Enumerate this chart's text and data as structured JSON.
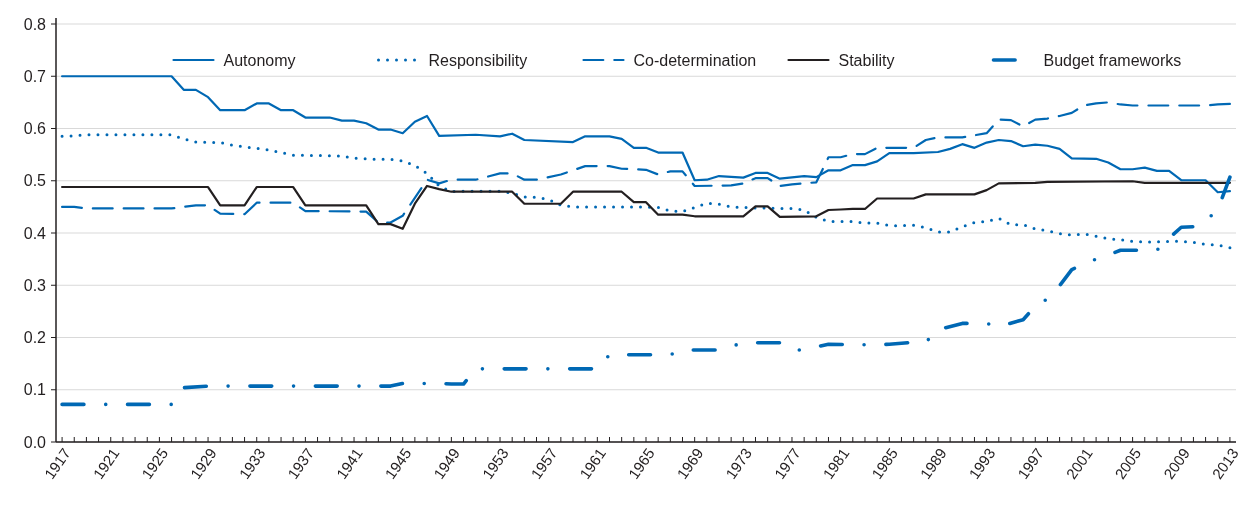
{
  "chart_data": {
    "type": "line",
    "xlim": [
      1916.5,
      2013.5
    ],
    "xticks": [
      1917,
      {
        "value": 1918,
        "label": null
      },
      {
        "value": 1919,
        "label": null
      },
      {
        "value": 1920,
        "label": null
      },
      1921,
      {
        "value": 1922,
        "label": null
      },
      {
        "value": 1923,
        "label": null
      },
      {
        "value": 1924,
        "label": null
      },
      1925,
      {
        "value": 1926,
        "label": null
      },
      {
        "value": 1927,
        "label": null
      },
      {
        "value": 1928,
        "label": null
      },
      1929,
      {
        "value": 1930,
        "label": null
      },
      {
        "value": 1931,
        "label": null
      },
      {
        "value": 1932,
        "label": null
      },
      1933,
      {
        "value": 1934,
        "label": null
      },
      {
        "value": 1935,
        "label": null
      },
      {
        "value": 1936,
        "label": null
      },
      1937,
      {
        "value": 1938,
        "label": null
      },
      {
        "value": 1939,
        "label": null
      },
      {
        "value": 1940,
        "label": null
      },
      1941,
      {
        "value": 1942,
        "label": null
      },
      {
        "value": 1943,
        "label": null
      },
      {
        "value": 1944,
        "label": null
      },
      1945,
      {
        "value": 1946,
        "label": null
      },
      {
        "value": 1947,
        "label": null
      },
      {
        "value": 1948,
        "label": null
      },
      1949,
      {
        "value": 1950,
        "label": null
      },
      {
        "value": 1951,
        "label": null
      },
      {
        "value": 1952,
        "label": null
      },
      1953,
      {
        "value": 1954,
        "label": null
      },
      {
        "value": 1955,
        "label": null
      },
      {
        "value": 1956,
        "label": null
      },
      1957,
      {
        "value": 1958,
        "label": null
      },
      {
        "value": 1959,
        "label": null
      },
      {
        "value": 1960,
        "label": null
      },
      1961,
      {
        "value": 1962,
        "label": null
      },
      {
        "value": 1963,
        "label": null
      },
      {
        "value": 1964,
        "label": null
      },
      1965,
      {
        "value": 1966,
        "label": null
      },
      {
        "value": 1967,
        "label": null
      },
      {
        "value": 1968,
        "label": null
      },
      1969,
      {
        "value": 1970,
        "label": null
      },
      {
        "value": 1971,
        "label": null
      },
      {
        "value": 1972,
        "label": null
      },
      1973,
      {
        "value": 1974,
        "label": null
      },
      {
        "value": 1975,
        "label": null
      },
      {
        "value": 1976,
        "label": null
      },
      1977,
      {
        "value": 1978,
        "label": null
      },
      {
        "value": 1979,
        "label": null
      },
      {
        "value": 1980,
        "label": null
      },
      1981,
      {
        "value": 1982,
        "label": null
      },
      {
        "value": 1983,
        "label": null
      },
      {
        "value": 1984,
        "label": null
      },
      1985,
      {
        "value": 1986,
        "label": null
      },
      {
        "value": 1987,
        "label": null
      },
      {
        "value": 1988,
        "label": null
      },
      1989,
      {
        "value": 1990,
        "label": null
      },
      {
        "value": 1991,
        "label": null
      },
      {
        "value": 1992,
        "label": null
      },
      1993,
      {
        "value": 1994,
        "label": null
      },
      {
        "value": 1995,
        "label": null
      },
      {
        "value": 1996,
        "label": null
      },
      1997,
      {
        "value": 1998,
        "label": null
      },
      {
        "value": 1999,
        "label": null
      },
      {
        "value": 2000,
        "label": null
      },
      2001,
      {
        "value": 2002,
        "label": null
      },
      {
        "value": 2003,
        "label": null
      },
      {
        "value": 2004,
        "label": null
      },
      2005,
      {
        "value": 2006,
        "label": null
      },
      {
        "value": 2007,
        "label": null
      },
      {
        "value": 2008,
        "label": null
      },
      2009,
      {
        "value": 2010,
        "label": null
      },
      {
        "value": 2011,
        "label": null
      },
      {
        "value": 2012,
        "label": null
      },
      2013
    ],
    "ylim": [
      0,
      0.8
    ],
    "yticks": [
      {
        "value": 0,
        "label": "0.0"
      },
      0.1,
      0.2,
      0.3,
      0.4,
      0.5,
      0.6,
      0.7,
      0.8
    ],
    "grid": "y",
    "legend": "top",
    "marker": "none",
    "series": [
      {
        "name": "Autonomy",
        "color": "#0068b4",
        "line_style": "solid",
        "x": [
          1917,
          1926,
          1927,
          1928,
          1929,
          1930,
          1932,
          1933,
          1934,
          1935,
          1936,
          1937,
          1939,
          1940,
          1941,
          1942,
          1943,
          1944,
          1945,
          1946,
          1947,
          1948,
          1951,
          1953,
          1954,
          1955,
          1959,
          1960,
          1962,
          1963,
          1964,
          1965,
          1966,
          1968,
          1969,
          1970,
          1971,
          1973,
          1974,
          1975,
          1976,
          1978,
          1979,
          1980,
          1981,
          1982,
          1983,
          1984,
          1985,
          1987,
          1989,
          1990,
          1991,
          1992,
          1993,
          1994,
          1995,
          1996,
          1997,
          1998,
          1999,
          2000,
          2002,
          2003,
          2004,
          2005,
          2006,
          2007,
          2008,
          2009,
          2011,
          2012,
          2013
        ],
        "values": [
          0.7,
          0.7,
          0.674,
          0.674,
          0.66,
          0.635,
          0.635,
          0.648,
          0.648,
          0.635,
          0.635,
          0.621,
          0.621,
          0.615,
          0.615,
          0.61,
          0.598,
          0.598,
          0.591,
          0.613,
          0.624,
          0.586,
          0.588,
          0.585,
          0.59,
          0.578,
          0.574,
          0.585,
          0.585,
          0.58,
          0.563,
          0.563,
          0.554,
          0.554,
          0.501,
          0.502,
          0.509,
          0.506,
          0.515,
          0.515,
          0.504,
          0.509,
          0.507,
          0.52,
          0.52,
          0.53,
          0.53,
          0.537,
          0.553,
          0.553,
          0.555,
          0.561,
          0.57,
          0.563,
          0.573,
          0.578,
          0.576,
          0.566,
          0.569,
          0.567,
          0.561,
          0.543,
          0.542,
          0.535,
          0.522,
          0.522,
          0.525,
          0.519,
          0.519,
          0.501,
          0.501,
          0.478,
          0.48
        ]
      },
      {
        "name": "Responsibility",
        "color": "#0068b4",
        "line_style": "dotted",
        "x": [
          1917,
          1918,
          1919,
          1926,
          1927,
          1928,
          1930,
          1931,
          1932,
          1933,
          1934,
          1935,
          1936,
          1939,
          1940,
          1941,
          1943,
          1944,
          1945,
          1946,
          1947,
          1948,
          1949,
          1950,
          1953,
          1954,
          1955,
          1956,
          1957,
          1958,
          1959,
          1964,
          1966,
          1967,
          1968,
          1969,
          1970,
          1971,
          1972,
          1973,
          1974,
          1975,
          1976,
          1977,
          1978,
          1979,
          1980,
          1981,
          1982,
          1983,
          1984,
          1985,
          1986,
          1987,
          1988,
          1989,
          1990,
          1991,
          1992,
          1993,
          1994,
          1995,
          1996,
          1997,
          1998,
          1999,
          2000,
          2001,
          2002,
          2003,
          2004,
          2005,
          2006,
          2007,
          2008,
          2009,
          2010,
          2011,
          2012,
          2013
        ],
        "values": [
          0.585,
          0.586,
          0.588,
          0.588,
          0.58,
          0.574,
          0.573,
          0.568,
          0.565,
          0.562,
          0.559,
          0.554,
          0.549,
          0.548,
          0.547,
          0.543,
          0.541,
          0.541,
          0.538,
          0.529,
          0.514,
          0.49,
          0.479,
          0.48,
          0.48,
          0.476,
          0.469,
          0.468,
          0.464,
          0.453,
          0.45,
          0.45,
          0.449,
          0.442,
          0.441,
          0.449,
          0.457,
          0.455,
          0.45,
          0.449,
          0.448,
          0.448,
          0.447,
          0.447,
          0.444,
          0.43,
          0.422,
          0.422,
          0.422,
          0.419,
          0.419,
          0.414,
          0.414,
          0.415,
          0.41,
          0.402,
          0.402,
          0.412,
          0.42,
          0.422,
          0.428,
          0.416,
          0.416,
          0.408,
          0.404,
          0.399,
          0.396,
          0.398,
          0.394,
          0.389,
          0.387,
          0.384,
          0.383,
          0.383,
          0.384,
          0.384,
          0.382,
          0.378,
          0.377,
          0.372
        ]
      },
      {
        "name": "Co-determination",
        "color": "#0068b4",
        "line_style": "dashed",
        "x": [
          1917,
          1918,
          1919,
          1926,
          1928,
          1929,
          1930,
          1932,
          1933,
          1936,
          1937,
          1942,
          1943,
          1944,
          1945,
          1946,
          1947,
          1948,
          1949,
          1951,
          1953,
          1954,
          1955,
          1956,
          1958,
          1960,
          1962,
          1963,
          1965,
          1966,
          1967,
          1968,
          1969,
          1972,
          1973,
          1974,
          1975,
          1976,
          1977,
          1979,
          1980,
          1981,
          1982,
          1983,
          1984,
          1987,
          1988,
          1989,
          1991,
          1993,
          1994,
          1995,
          1996,
          1997,
          1998,
          1999,
          2000,
          2001,
          2002,
          2003,
          2004,
          2005,
          2011,
          2012,
          2013
        ],
        "values": [
          0.45,
          0.45,
          0.447,
          0.447,
          0.453,
          0.453,
          0.437,
          0.436,
          0.458,
          0.458,
          0.442,
          0.441,
          0.42,
          0.42,
          0.433,
          0.467,
          0.502,
          0.495,
          0.502,
          0.502,
          0.514,
          0.514,
          0.502,
          0.502,
          0.512,
          0.528,
          0.528,
          0.523,
          0.521,
          0.512,
          0.518,
          0.518,
          0.49,
          0.491,
          0.495,
          0.505,
          0.505,
          0.49,
          0.493,
          0.497,
          0.545,
          0.545,
          0.551,
          0.551,
          0.563,
          0.563,
          0.578,
          0.583,
          0.583,
          0.591,
          0.617,
          0.616,
          0.604,
          0.617,
          0.619,
          0.624,
          0.63,
          0.644,
          0.648,
          0.65,
          0.646,
          0.644,
          0.644,
          0.646,
          0.647
        ]
      },
      {
        "name": "Stability",
        "color": "#231f20",
        "line_style": "solid",
        "x": [
          1917,
          1929,
          1930,
          1932,
          1933,
          1936,
          1937,
          1942,
          1943,
          1944,
          1945,
          1946,
          1947,
          1948,
          1949,
          1954,
          1955,
          1958,
          1959,
          1963,
          1964,
          1965,
          1966,
          1968,
          1969,
          1973,
          1974,
          1975,
          1976,
          1979,
          1980,
          1981,
          1982,
          1983,
          1984,
          1987,
          1988,
          1992,
          1993,
          1994,
          1997,
          1998,
          2005,
          2006,
          2013
        ],
        "values": [
          0.488,
          0.488,
          0.453,
          0.453,
          0.488,
          0.488,
          0.453,
          0.453,
          0.417,
          0.417,
          0.408,
          0.456,
          0.49,
          0.484,
          0.479,
          0.479,
          0.456,
          0.456,
          0.479,
          0.479,
          0.459,
          0.459,
          0.435,
          0.435,
          0.432,
          0.432,
          0.451,
          0.451,
          0.431,
          0.432,
          0.444,
          0.445,
          0.446,
          0.446,
          0.466,
          0.466,
          0.474,
          0.474,
          0.482,
          0.495,
          0.496,
          0.498,
          0.499,
          0.496,
          0.496
        ]
      },
      {
        "name": "Budget frameworks",
        "color": "#0068b4",
        "line_style": "dashdot",
        "x": [
          1917,
          1926,
          1927,
          1929,
          1944,
          1945,
          1948,
          1949,
          1950,
          1951,
          1961,
          1962,
          1967,
          1968,
          1971,
          1973,
          1976,
          1977,
          1978,
          1979,
          1980,
          1983,
          1985,
          1987,
          1988,
          1989,
          1991,
          1993,
          1994,
          1996,
          1997,
          1998,
          1999,
          2000,
          2001,
          2002,
          2003,
          2004,
          2007,
          2008,
          2009,
          2010,
          2011,
          2012,
          2013
        ],
        "values": [
          0.072,
          0.072,
          0.104,
          0.107,
          0.107,
          0.112,
          0.112,
          0.111,
          0.111,
          0.14,
          0.14,
          0.167,
          0.167,
          0.176,
          0.176,
          0.19,
          0.19,
          0.176,
          0.176,
          0.182,
          0.187,
          0.186,
          0.187,
          0.191,
          0.191,
          0.215,
          0.227,
          0.227,
          0.221,
          0.234,
          0.26,
          0.274,
          0.299,
          0.33,
          0.34,
          0.35,
          0.358,
          0.367,
          0.367,
          0.39,
          0.411,
          0.412,
          0.423,
          0.445,
          0.507
        ]
      }
    ]
  }
}
